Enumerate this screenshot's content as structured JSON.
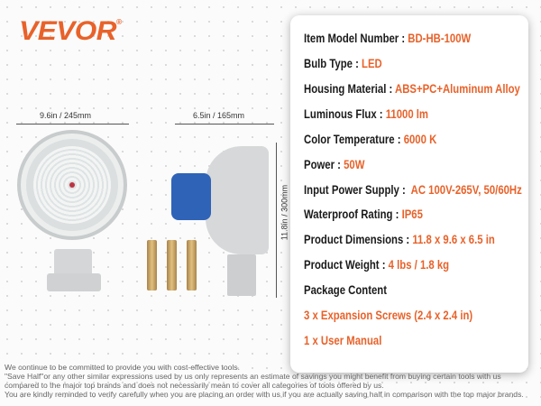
{
  "brand": {
    "name": "VEVOR",
    "mark": "®",
    "color": "#e8622a"
  },
  "dimensions": {
    "width_front": "9.6in / 245mm",
    "depth_side": "6.5in / 165mm",
    "height_side": "11.8in / 300mm"
  },
  "specs": [
    {
      "label": "Item Model Number : ",
      "value": "BD-HB-100W"
    },
    {
      "label": "Bulb Type : ",
      "value": "LED"
    },
    {
      "label": "Housing Material : ",
      "value": "ABS+PC+Aluminum Alloy"
    },
    {
      "label": "Luminous Flux : ",
      "value": "11000 lm"
    },
    {
      "label": "Color Temperature : ",
      "value": "6000 K"
    },
    {
      "label": "Power : ",
      "value": "50W"
    },
    {
      "label": "Input Power Supply :  ",
      "value": "AC 100V-265V, 50/60Hz"
    },
    {
      "label": "Waterproof Rating : ",
      "value": "IP65"
    },
    {
      "label": "Product Dimensions : ",
      "value": "11.8 x 9.6 x 6.5 in"
    },
    {
      "label": "Product Weight : ",
      "value": "4 lbs / 1.8 kg"
    }
  ],
  "package": {
    "title": "Package Content",
    "items": [
      "3 x Expansion Screws (2.4 x 2.4 in)",
      "1 x User Manual"
    ]
  },
  "disclaimer": [
    "We continue to be committed to provide you with cost-effective tools.",
    "\"Save Half\"or any other similar expressions used by us only represents an estimate of savings you might benefit from buying certain tools with us",
    "compared to the major top brands and does not necessarily mean to cover all categories of tools offered by us.",
    "You are kindly reminded to verify carefully when you are placing an order with us if you are actually saving half in comparison with the top major brands."
  ]
}
